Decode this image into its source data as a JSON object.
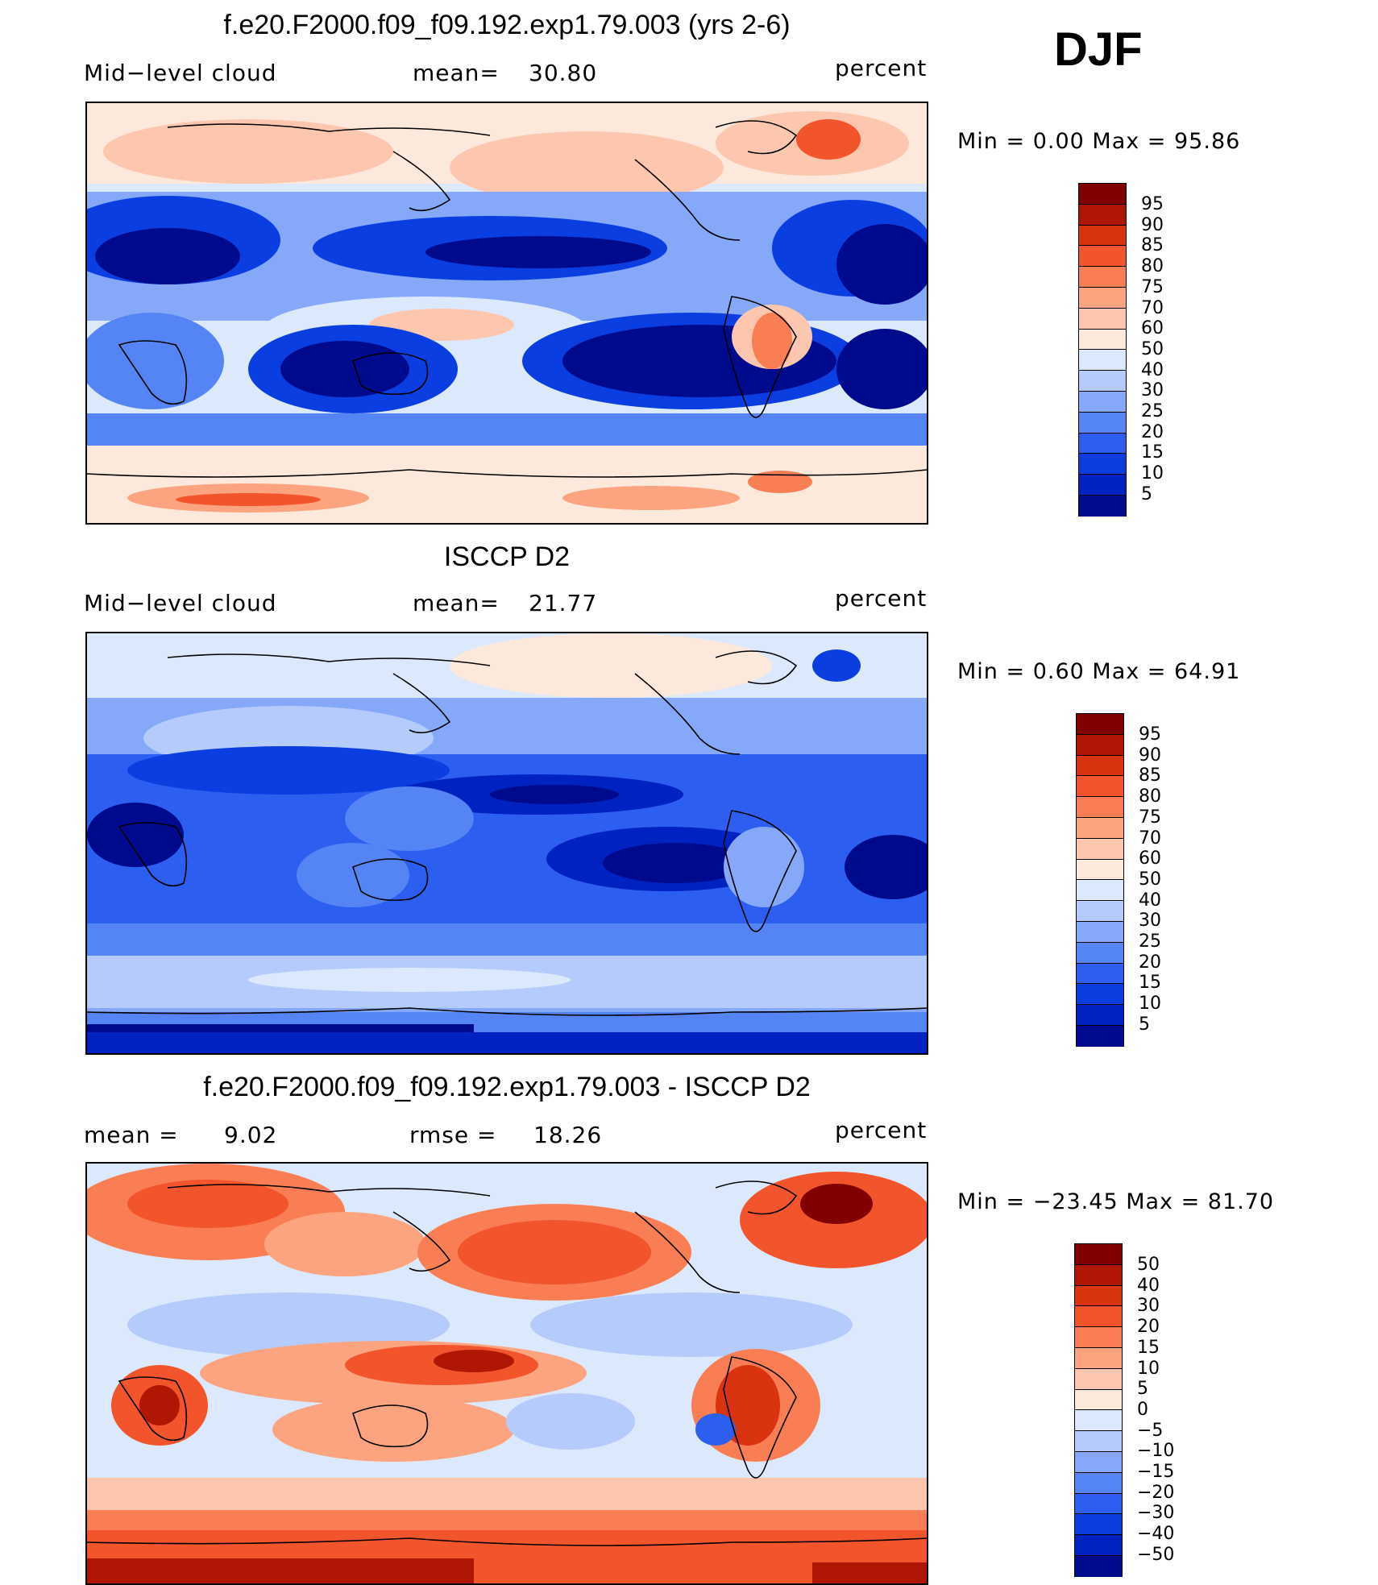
{
  "season": "DJF",
  "colors": {
    "lev01": "#000a8c",
    "lev02": "#0022c0",
    "lev03": "#0a3ee0",
    "lev04": "#2c5ef0",
    "lev05": "#5585f5",
    "lev06": "#86a8f8",
    "lev07": "#b4cbfb",
    "lev08": "#dce9fd",
    "lev09": "#fde8dc",
    "lev10": "#fcc7ae",
    "lev11": "#fba47f",
    "lev12": "#f97e54",
    "lev13": "#f2542c",
    "lev14": "#d93310",
    "lev15": "#b01604",
    "lev16": "#800000"
  },
  "panels": [
    {
      "title": "f.e20.F2000.f09_f09.192.exp1.79.003 (yrs 2-6)",
      "left_label": "Mid−level cloud",
      "center_label": "mean=",
      "center_value": "30.80",
      "right_label": "percent",
      "minmax": "Min  =     0.00  Max  =    95.86",
      "colorbar_labels": [
        "95",
        "90",
        "85",
        "80",
        "75",
        "70",
        "60",
        "50",
        "40",
        "30",
        "25",
        "20",
        "15",
        "10",
        "5"
      ]
    },
    {
      "title": "ISCCP D2",
      "left_label": "Mid−level cloud",
      "center_label": "mean=",
      "center_value": "21.77",
      "right_label": "percent",
      "minmax": "Min  =     0.60  Max  =    64.91",
      "colorbar_labels": [
        "95",
        "90",
        "85",
        "80",
        "75",
        "70",
        "60",
        "50",
        "40",
        "30",
        "25",
        "20",
        "15",
        "10",
        "5"
      ]
    },
    {
      "title": "f.e20.F2000.f09_f09.192.exp1.79.003 - ISCCP D2",
      "left_label": "mean  =",
      "left_value": "9.02",
      "center_label": "rmse  =",
      "center_value": "18.26",
      "right_label": "percent",
      "minmax": "Min  = −23.45  Max  =    81.70",
      "colorbar_labels": [
        "50",
        "40",
        "30",
        "20",
        "15",
        "10",
        "5",
        "0",
        "−5",
        "−10",
        "−15",
        "−20",
        "−30",
        "−40",
        "−50"
      ]
    }
  ]
}
